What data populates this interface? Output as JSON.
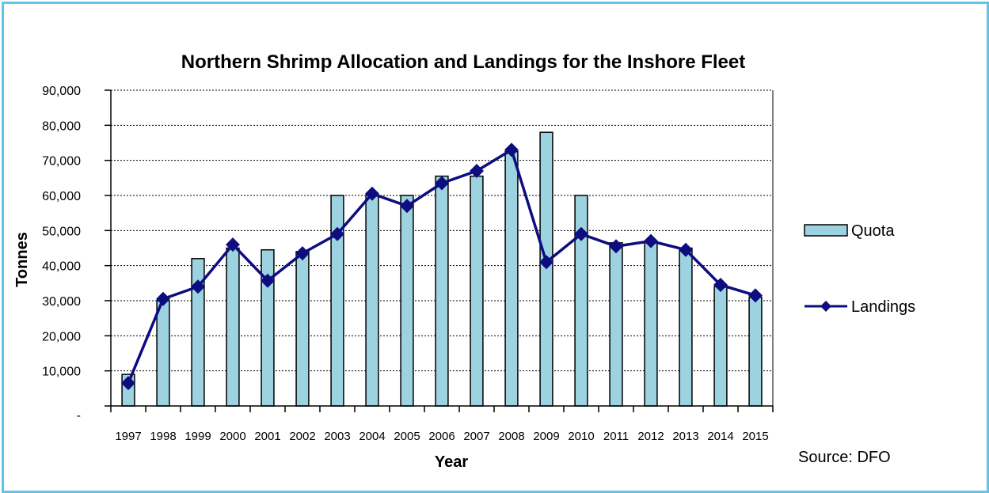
{
  "chart_data": {
    "type": "bar+line",
    "title": "Northern Shrimp Allocation and Landings for the Inshore Fleet",
    "xlabel": "Year",
    "ylabel": "Tonnes",
    "ylim": [
      0,
      90000
    ],
    "yticks": [
      "-",
      "10,000",
      "20,000",
      "30,000",
      "40,000",
      "50,000",
      "60,000",
      "70,000",
      "80,000",
      "90,000"
    ],
    "categories": [
      "1997",
      "1998",
      "1999",
      "2000",
      "2001",
      "2002",
      "2003",
      "2004",
      "2005",
      "2006",
      "2007",
      "2008",
      "2009",
      "2010",
      "2011",
      "2012",
      "2013",
      "2014",
      "2015"
    ],
    "series": [
      {
        "name": "Quota",
        "kind": "bar",
        "values": [
          9000,
          30000,
          42000,
          45000,
          44500,
          44000,
          60000,
          60000,
          60000,
          65500,
          65500,
          72500,
          78000,
          60000,
          46500,
          46500,
          45000,
          34000,
          31000
        ]
      },
      {
        "name": "Landings",
        "kind": "line",
        "values": [
          6500,
          30500,
          34000,
          46000,
          35700,
          43500,
          49000,
          60500,
          57000,
          63500,
          67000,
          73000,
          41000,
          49000,
          45500,
          47000,
          44500,
          34500,
          31500
        ]
      }
    ],
    "legend": "right",
    "grid": true,
    "source_note": "Source: DFO"
  },
  "colors": {
    "bar_fill": "#9dd3e0",
    "line": "#0d0d80",
    "frame": "#5bc8e6"
  }
}
